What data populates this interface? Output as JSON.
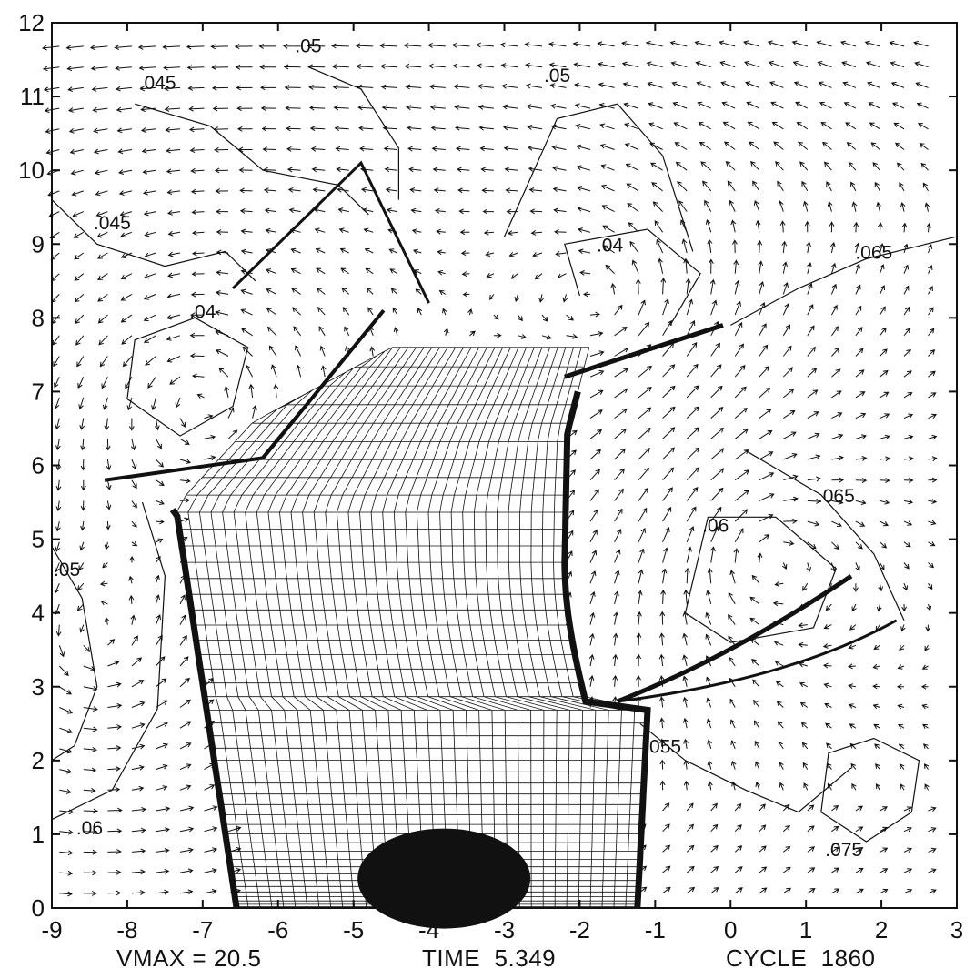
{
  "chart_data": {
    "type": "vector-field-with-contours-and-mesh",
    "x_range": [
      -9,
      3
    ],
    "y_range": [
      0,
      12
    ],
    "x_ticks": [
      "-9",
      "-8",
      "-7",
      "-6",
      "-5",
      "-4",
      "-3",
      "-2",
      "-1",
      "0",
      "1",
      "2",
      "3"
    ],
    "y_ticks": [
      "0",
      "1",
      "2",
      "3",
      "4",
      "5",
      "6",
      "7",
      "8",
      "9",
      "10",
      "11",
      "12"
    ],
    "contour_labels": [
      {
        "text": ".05",
        "x": -5.6,
        "y": 11.6
      },
      {
        "text": ".045",
        "x": -7.6,
        "y": 11.1
      },
      {
        "text": ".05",
        "x": -2.3,
        "y": 11.2
      },
      {
        "text": ".045",
        "x": -8.2,
        "y": 9.2
      },
      {
        "text": ".04",
        "x": -1.6,
        "y": 8.9
      },
      {
        "text": ".065",
        "x": 1.9,
        "y": 8.8
      },
      {
        "text": ".04",
        "x": -7.0,
        "y": 8.0
      },
      {
        "text": ".065",
        "x": 1.4,
        "y": 5.5
      },
      {
        "text": ".06",
        "x": -0.2,
        "y": 5.1
      },
      {
        "text": ".05",
        "x": -8.8,
        "y": 4.5
      },
      {
        "text": ".055",
        "x": -0.9,
        "y": 2.1
      },
      {
        "text": ".06",
        "x": -8.5,
        "y": 1.0
      },
      {
        "text": ".075",
        "x": 1.5,
        "y": 0.7
      }
    ],
    "footer": {
      "vmax": "VMAX = 20.5",
      "time": "TIME  5.349",
      "cycle": "CYCLE  1860"
    },
    "grid": false
  }
}
